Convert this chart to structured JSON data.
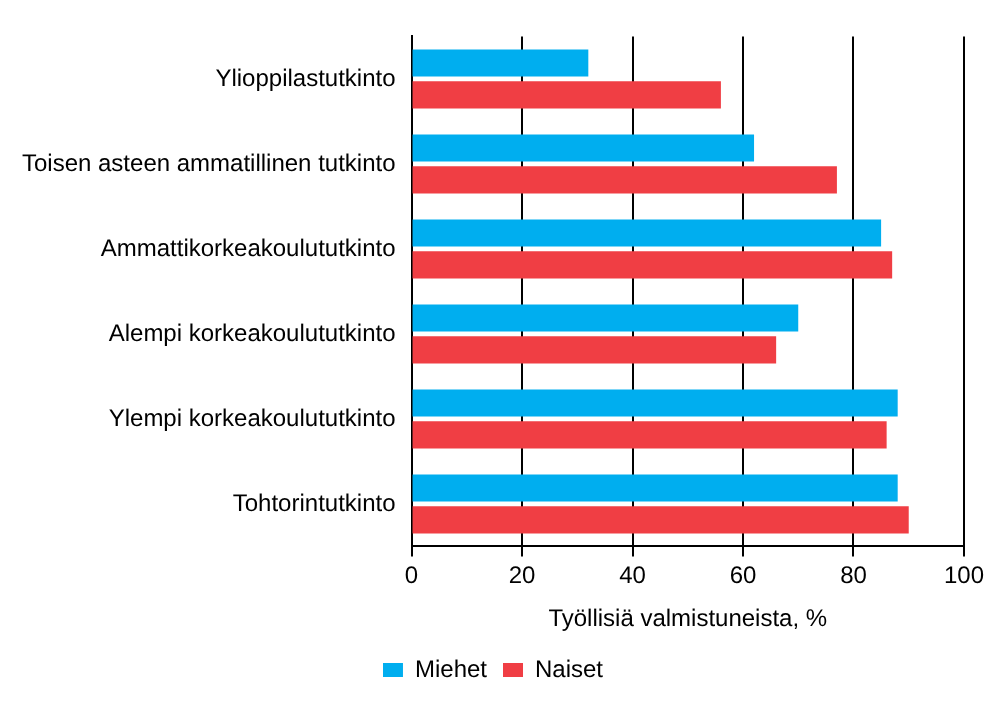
{
  "chart_data": {
    "type": "bar",
    "orientation": "horizontal",
    "xlabel": "Työllisiä valmistuneista, %",
    "categories": [
      "Ylioppilastutkinto",
      "Toisen asteen ammatillinen tutkinto",
      "Ammattikorkeakoulututkinto",
      "Alempi korkeakoulututkinto",
      "Ylempi korkeakoulututkinto",
      "Tohtorintutkinto"
    ],
    "series": [
      {
        "name": "Miehet",
        "color": "#00aeef",
        "values": [
          32,
          62,
          85,
          70,
          88,
          88
        ]
      },
      {
        "name": "Naiset",
        "color": "#f03e44",
        "values": [
          56,
          77,
          87,
          66,
          86,
          90
        ]
      }
    ],
    "xlim": [
      0,
      100
    ],
    "xticks": [
      0,
      20,
      40,
      60,
      80,
      100
    ],
    "grid": "x",
    "legend": "bottom"
  }
}
